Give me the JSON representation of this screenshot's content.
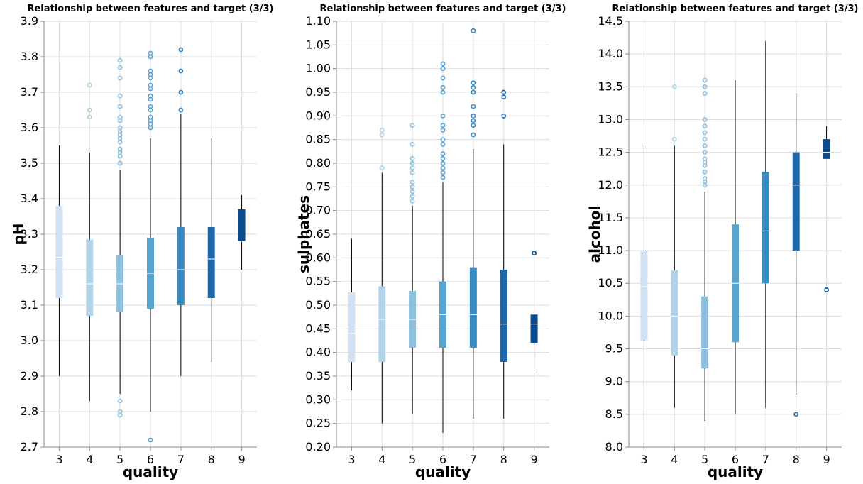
{
  "colors": {
    "3": "#cfe1f2",
    "4": "#b2d2e8",
    "5": "#8dc0de",
    "6": "#5ba3cf",
    "7": "#3a8ac2",
    "8": "#1c68ad",
    "9": "#0b4a8c",
    "whisker": "#000000",
    "median": "#ffffff"
  },
  "chart_data": [
    {
      "type": "boxplot",
      "title": "Relationship between features and target (3/3)",
      "xlabel": "quality",
      "ylabel": "pH",
      "categories": [
        "3",
        "4",
        "5",
        "6",
        "7",
        "8",
        "9"
      ],
      "ylim": [
        2.7,
        3.9
      ],
      "yticks": [
        "2.7",
        "2.8",
        "2.9",
        "3.0",
        "3.1",
        "3.2",
        "3.3",
        "3.4",
        "3.5",
        "3.6",
        "3.7",
        "3.8",
        "3.9"
      ],
      "grid": true,
      "boxes": [
        {
          "q1": 3.12,
          "median": 3.235,
          "q3": 3.38,
          "min": 2.9,
          "max": 3.55,
          "outliers": []
        },
        {
          "q1": 3.07,
          "median": 3.16,
          "q3": 3.285,
          "min": 2.83,
          "max": 3.53,
          "outliers": [
            3.63,
            3.65,
            3.72
          ]
        },
        {
          "q1": 3.08,
          "median": 3.16,
          "q3": 3.24,
          "min": 2.85,
          "max": 3.48,
          "outliers": [
            2.79,
            2.8,
            2.83,
            3.5,
            3.5,
            3.52,
            3.53,
            3.54,
            3.56,
            3.57,
            3.58,
            3.59,
            3.6,
            3.62,
            3.63,
            3.66,
            3.69,
            3.74,
            3.77,
            3.79
          ]
        },
        {
          "q1": 3.09,
          "median": 3.19,
          "q3": 3.29,
          "min": 2.8,
          "max": 3.57,
          "outliers": [
            2.72,
            3.6,
            3.61,
            3.62,
            3.63,
            3.65,
            3.66,
            3.68,
            3.69,
            3.71,
            3.72,
            3.74,
            3.75,
            3.76,
            3.8,
            3.81
          ]
        },
        {
          "q1": 3.1,
          "median": 3.2,
          "q3": 3.32,
          "min": 2.9,
          "max": 3.64,
          "outliers": [
            3.65,
            3.7,
            3.76,
            3.82
          ]
        },
        {
          "q1": 3.12,
          "median": 3.23,
          "q3": 3.32,
          "min": 2.94,
          "max": 3.57,
          "outliers": []
        },
        {
          "q1": 3.28,
          "median": 3.28,
          "q3": 3.37,
          "min": 3.2,
          "max": 3.41,
          "outliers": []
        }
      ]
    },
    {
      "type": "boxplot",
      "title": "Relationship between features and target (3/3)",
      "xlabel": "quality",
      "ylabel": "sulphates",
      "categories": [
        "3",
        "4",
        "5",
        "6",
        "7",
        "8",
        "9"
      ],
      "ylim": [
        0.2,
        1.1
      ],
      "yticks": [
        "0.20",
        "0.25",
        "0.30",
        "0.35",
        "0.40",
        "0.45",
        "0.50",
        "0.55",
        "0.60",
        "0.65",
        "0.70",
        "0.75",
        "0.80",
        "0.85",
        "0.90",
        "0.95",
        "1.00",
        "1.05",
        "1.10"
      ],
      "grid": true,
      "boxes": [
        {
          "q1": 0.38,
          "median": 0.44,
          "q3": 0.527,
          "min": 0.32,
          "max": 0.64,
          "outliers": []
        },
        {
          "q1": 0.38,
          "median": 0.47,
          "q3": 0.54,
          "min": 0.25,
          "max": 0.78,
          "outliers": [
            0.79,
            0.86,
            0.87
          ]
        },
        {
          "q1": 0.41,
          "median": 0.47,
          "q3": 0.53,
          "min": 0.27,
          "max": 0.71,
          "outliers": [
            0.72,
            0.73,
            0.74,
            0.75,
            0.76,
            0.78,
            0.79,
            0.8,
            0.81,
            0.84,
            0.88
          ]
        },
        {
          "q1": 0.41,
          "median": 0.48,
          "q3": 0.55,
          "min": 0.23,
          "max": 0.76,
          "outliers": [
            0.77,
            0.78,
            0.79,
            0.8,
            0.81,
            0.82,
            0.84,
            0.85,
            0.87,
            0.88,
            0.9,
            0.95,
            0.96,
            0.98,
            1.0,
            1.01
          ]
        },
        {
          "q1": 0.41,
          "median": 0.48,
          "q3": 0.58,
          "min": 0.26,
          "max": 0.83,
          "outliers": [
            0.86,
            0.88,
            0.89,
            0.9,
            0.92,
            0.95,
            0.96,
            0.97,
            1.08
          ]
        },
        {
          "q1": 0.38,
          "median": 0.46,
          "q3": 0.575,
          "min": 0.26,
          "max": 0.84,
          "outliers": [
            0.9,
            0.94,
            0.95
          ]
        },
        {
          "q1": 0.42,
          "median": 0.46,
          "q3": 0.48,
          "min": 0.36,
          "max": 0.48,
          "outliers": [
            0.61
          ]
        }
      ]
    },
    {
      "type": "boxplot",
      "title": "Relationship between features and target (3/3)",
      "xlabel": "quality",
      "ylabel": "alcohol",
      "categories": [
        "3",
        "4",
        "5",
        "6",
        "7",
        "8",
        "9"
      ],
      "ylim": [
        8.0,
        14.5
      ],
      "yticks": [
        "8.0",
        "8.5",
        "9.0",
        "9.5",
        "10.0",
        "10.5",
        "11.0",
        "11.5",
        "12.0",
        "12.5",
        "13.0",
        "13.5",
        "14.0",
        "14.5"
      ],
      "grid": true,
      "boxes": [
        {
          "q1": 9.63,
          "median": 10.45,
          "q3": 11.0,
          "min": 8.0,
          "max": 12.6,
          "outliers": []
        },
        {
          "q1": 9.4,
          "median": 10.0,
          "q3": 10.7,
          "min": 8.6,
          "max": 12.6,
          "outliers": [
            12.7,
            13.5
          ]
        },
        {
          "q1": 9.2,
          "median": 9.5,
          "q3": 10.3,
          "min": 8.4,
          "max": 11.9,
          "outliers": [
            12.0,
            12.05,
            12.1,
            12.2,
            12.3,
            12.35,
            12.4,
            12.5,
            12.6,
            12.7,
            12.8,
            12.9,
            13.0,
            13.4,
            13.5,
            13.6
          ]
        },
        {
          "q1": 9.6,
          "median": 10.5,
          "q3": 11.4,
          "min": 8.5,
          "max": 13.6,
          "outliers": []
        },
        {
          "q1": 10.5,
          "median": 11.3,
          "q3": 12.2,
          "min": 8.6,
          "max": 14.2,
          "outliers": []
        },
        {
          "q1": 11.0,
          "median": 12.0,
          "q3": 12.5,
          "min": 8.8,
          "max": 13.4,
          "outliers": [
            8.5
          ]
        },
        {
          "q1": 12.4,
          "median": 12.5,
          "q3": 12.7,
          "min": 12.4,
          "max": 12.9,
          "outliers": [
            10.4
          ]
        }
      ]
    }
  ]
}
